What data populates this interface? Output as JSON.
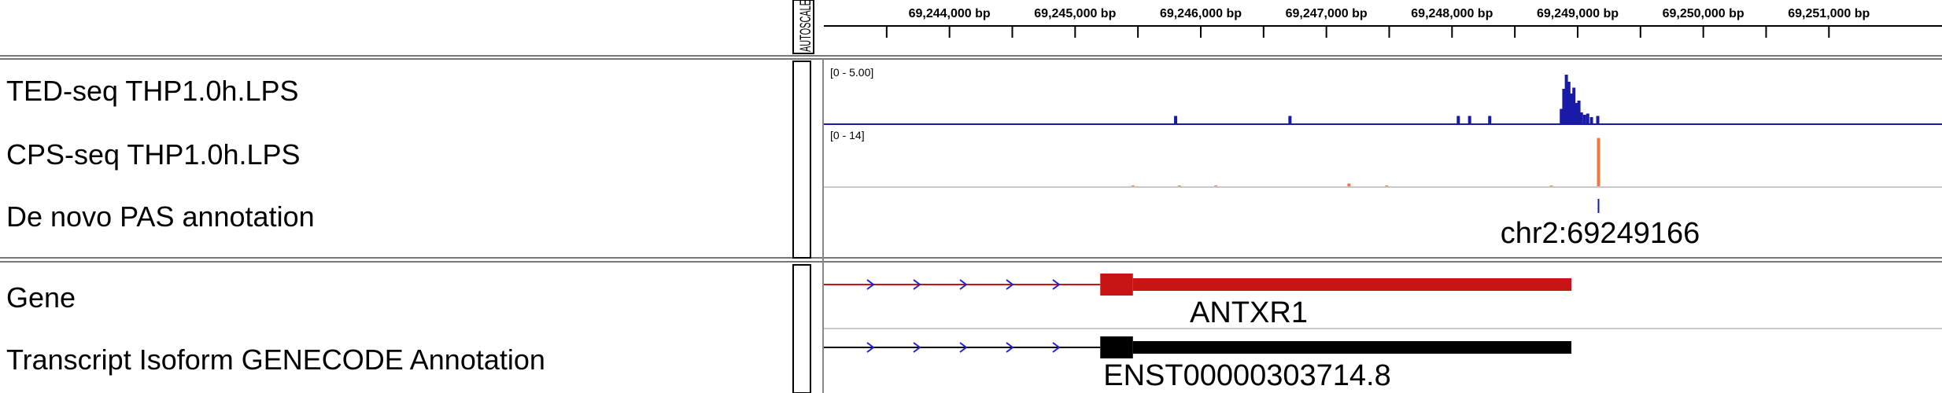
{
  "ruler": {
    "start_bp": 69243000,
    "end_bp": 69251900,
    "ticks": [
      {
        "bp": 69244000,
        "label": "69,244,000 bp"
      },
      {
        "bp": 69245000,
        "label": "69,245,000 bp"
      },
      {
        "bp": 69246000,
        "label": "69,246,000 bp"
      },
      {
        "bp": 69247000,
        "label": "69,247,000 bp"
      },
      {
        "bp": 69248000,
        "label": "69,248,000 bp"
      },
      {
        "bp": 69249000,
        "label": "69,249,000 bp"
      },
      {
        "bp": 69250000,
        "label": "69,250,000 bp"
      },
      {
        "bp": 69251000,
        "label": "69,251,000 bp"
      }
    ]
  },
  "attribute_header_label": "AUTOSCALE",
  "tracks": {
    "ted": {
      "name": "TED-seq THP1.0h.LPS",
      "range_label": "[0 - 5.00]",
      "ymax": 5,
      "color": "#1a1aa8",
      "bars": [
        {
          "bp": 69245800,
          "value": 0.7
        },
        {
          "bp": 69246710,
          "value": 0.7
        },
        {
          "bp": 69248050,
          "value": 0.7
        },
        {
          "bp": 69248140,
          "value": 0.7
        },
        {
          "bp": 69248300,
          "value": 0.7
        },
        {
          "bp": 69248870,
          "value": 1.3
        },
        {
          "bp": 69248890,
          "value": 3.0
        },
        {
          "bp": 69248910,
          "value": 4.2
        },
        {
          "bp": 69248930,
          "value": 3.6
        },
        {
          "bp": 69248950,
          "value": 2.6
        },
        {
          "bp": 69248970,
          "value": 3.1
        },
        {
          "bp": 69248990,
          "value": 1.8
        },
        {
          "bp": 69249010,
          "value": 2.0
        },
        {
          "bp": 69249030,
          "value": 1.0
        },
        {
          "bp": 69249055,
          "value": 0.8
        },
        {
          "bp": 69249080,
          "value": 0.9
        },
        {
          "bp": 69249110,
          "value": 0.6
        },
        {
          "bp": 69249160,
          "value": 0.7
        }
      ]
    },
    "cps": {
      "name": "CPS-seq THP1.0h.LPS",
      "range_label": "[0 - 14]",
      "ymax": 14,
      "color": "#f07848",
      "bars": [
        {
          "bp": 69245460,
          "value": 0.3
        },
        {
          "bp": 69245830,
          "value": 0.3
        },
        {
          "bp": 69246120,
          "value": 0.3
        },
        {
          "bp": 69247180,
          "value": 0.9
        },
        {
          "bp": 69247480,
          "value": 0.3
        },
        {
          "bp": 69248790,
          "value": 0.3
        },
        {
          "bp": 69249166,
          "value": 12.5
        }
      ]
    },
    "pas": {
      "name": "De novo PAS annotation",
      "feature_bp": 69249166,
      "feature_label": "chr2:69249166",
      "color": "#1a1aa8"
    },
    "gene": {
      "name": "Gene",
      "feature_label": "ANTXR1",
      "color": "#c81414",
      "intron_start_bp": 69243000,
      "utr_start_bp": 69245200,
      "cds_start_bp": 69245460,
      "end_bp": 69248950
    },
    "transcript": {
      "name": "Transcript Isoform GENECODE Annotation",
      "feature_label": "ENST00000303714.8",
      "color": "#000000",
      "intron_start_bp": 69243000,
      "utr_start_bp": 69245200,
      "cds_start_bp": 69245460,
      "end_bp": 69248950
    }
  }
}
